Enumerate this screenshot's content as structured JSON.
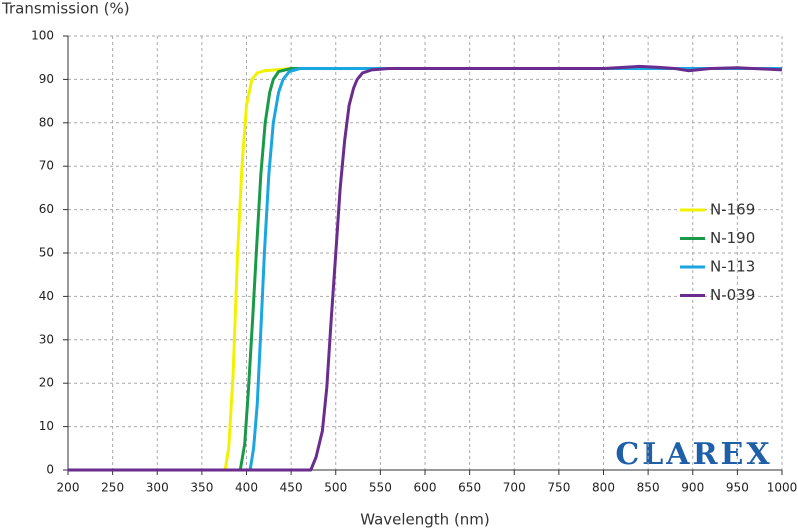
{
  "chart_data": {
    "type": "line",
    "y_label": "Transmission (%)",
    "x_label": "Wavelength (nm)",
    "logo": "CLAREX",
    "xlim": [
      200,
      1000
    ],
    "xticks": [
      200,
      250,
      300,
      350,
      400,
      450,
      500,
      550,
      600,
      650,
      700,
      750,
      800,
      850,
      900,
      950,
      1000
    ],
    "ylim": [
      0,
      100
    ],
    "yticks": [
      0,
      10,
      20,
      30,
      40,
      50,
      60,
      70,
      80,
      90,
      100
    ],
    "grid": true,
    "series": [
      {
        "name": "N-169",
        "color": "#f2f200",
        "x": [
          200,
          370,
          376,
          380,
          385,
          390,
          395,
          400,
          406,
          412,
          420,
          450,
          500,
          600,
          700,
          800,
          900,
          1000
        ],
        "values": [
          0,
          0,
          0,
          5,
          22,
          50,
          70,
          84,
          90,
          91.5,
          92,
          92.5,
          92.5,
          92.5,
          92.5,
          92.5,
          92.5,
          92.5
        ]
      },
      {
        "name": "N-190",
        "color": "#1a9a48",
        "x": [
          200,
          390,
          393,
          398,
          402,
          407,
          411,
          416,
          421,
          426,
          430,
          436,
          450,
          500,
          600,
          700,
          800,
          900,
          1000
        ],
        "values": [
          0,
          0,
          0,
          6,
          18,
          35,
          50,
          68,
          80,
          87,
          90,
          91.8,
          92.5,
          92.5,
          92.5,
          92.5,
          92.5,
          92.5,
          92.5
        ]
      },
      {
        "name": "N-113",
        "color": "#1aa6e0",
        "x": [
          200,
          400,
          404,
          408,
          412,
          416,
          420,
          425,
          430,
          436,
          441,
          448,
          460,
          500,
          600,
          700,
          800,
          900,
          1000
        ],
        "values": [
          0,
          0,
          0,
          5,
          15,
          32,
          50,
          68,
          80,
          87,
          90,
          91.8,
          92.5,
          92.5,
          92.5,
          92.5,
          92.5,
          92.5,
          92.5
        ]
      },
      {
        "name": "N-039",
        "color": "#6a2c8e",
        "x": [
          200,
          468,
          472,
          478,
          485,
          490,
          495,
          500,
          505,
          510,
          515,
          520,
          524,
          530,
          540,
          560,
          600,
          700,
          800,
          840,
          860,
          880,
          895,
          920,
          950,
          1000
        ],
        "values": [
          0,
          0,
          0,
          3,
          9,
          19,
          35,
          50,
          65,
          76,
          84,
          88,
          90,
          91.5,
          92.2,
          92.5,
          92.5,
          92.5,
          92.5,
          93,
          92.8,
          92.5,
          92,
          92.5,
          92.7,
          92.2
        ]
      }
    ]
  }
}
